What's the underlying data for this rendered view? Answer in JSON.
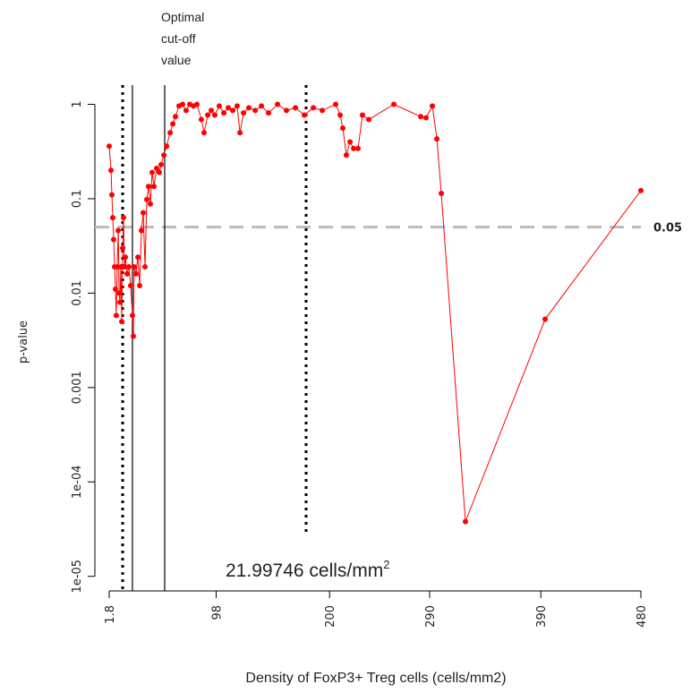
{
  "chart_data": {
    "type": "line",
    "y_label": "p-value",
    "x_label": "Density of FoxP3+ Treg cells (cells/mm2)",
    "log_y": true,
    "color": "#ff0000",
    "xlim": [
      1.8,
      480
    ],
    "ylim": [
      7e-06,
      1.6
    ],
    "xticks": [
      1.8,
      98,
      200,
      290,
      390,
      480
    ],
    "yticks": [
      1,
      0.1,
      0.01,
      0.001,
      {
        "value": 0.0001,
        "label": "1e-04"
      },
      {
        "value": 1e-05,
        "label": "1e-05"
      }
    ],
    "x": [
      1.8,
      3.4,
      4.2,
      5.0,
      5.8,
      6.6,
      7.4,
      8.2,
      9.0,
      9.9,
      10.7,
      11.5,
      12.3,
      13.1,
      13.9,
      14.7,
      15.5,
      16.3,
      17.9,
      19.5,
      21.1,
      22.7,
      23.5,
      24.3,
      25.9,
      27.6,
      29.2,
      30.8,
      32.4,
      34.0,
      35.6,
      37.2,
      38.8,
      40.4,
      42.1,
      44.5,
      46.9,
      48.5,
      51.0,
      53.4,
      56.6,
      59.0,
      61.4,
      64.6,
      67.8,
      71.0,
      74.2,
      77.5,
      80.7,
      84.7,
      87.1,
      90.4,
      93.6,
      96.8,
      100.8,
      104.9,
      108.9,
      112.9,
      116.9,
      119.4,
      122.6,
      127.4,
      133.1,
      138.7,
      145.1,
      153.2,
      161.2,
      169.3,
      177.3,
      185.4,
      193.4,
      205.5,
      209.5,
      211.9,
      215.1,
      218.4,
      221.6,
      225.6,
      229.6,
      235.3,
      257.8,
      282.0,
      286.8,
      292.5,
      296.5,
      300.5,
      322.2,
      393.9,
      480
    ],
    "values": [
      0.36,
      0.2,
      0.11,
      0.063,
      0.037,
      0.019,
      0.011,
      0.0058,
      0.019,
      0.046,
      0.01,
      0.008,
      0.019,
      0.005,
      0.03,
      0.063,
      0.019,
      0.024,
      0.016,
      0.019,
      0.012,
      0.0058,
      0.0035,
      0.019,
      0.016,
      0.024,
      0.012,
      0.046,
      0.071,
      0.019,
      0.098,
      0.135,
      0.088,
      0.19,
      0.135,
      0.21,
      0.19,
      0.23,
      0.29,
      0.36,
      0.5,
      0.62,
      0.74,
      0.96,
      1,
      0.86,
      1,
      0.96,
      1,
      0.69,
      0.5,
      0.77,
      0.86,
      0.77,
      0.96,
      0.81,
      0.92,
      0.86,
      0.96,
      0.5,
      0.81,
      0.92,
      0.86,
      0.96,
      0.81,
      1,
      0.86,
      0.92,
      0.77,
      0.92,
      0.86,
      1,
      0.77,
      0.56,
      0.29,
      0.4,
      0.34,
      0.34,
      0.77,
      0.69,
      1,
      0.74,
      0.72,
      0.96,
      0.43,
      0.114,
      3.8e-05,
      0.0053,
      0.122
    ],
    "hline": {
      "value": 0.05,
      "label": "0.05",
      "color": "#bbbbbb"
    },
    "vlines": [
      {
        "x": 13.9,
        "style": "dotted"
      },
      {
        "x": 22.7,
        "style": "solid"
      },
      {
        "x": 51.7,
        "style": "solid"
      },
      {
        "x": 178.9,
        "style": "dotted",
        "y_end": 2.8e-05
      }
    ],
    "annotations": {
      "cutoff_label": [
        "Optimal",
        "cut-off",
        "value"
      ],
      "cutoff_value": {
        "text": "21.99746 cells/mm",
        "sup": "2"
      }
    }
  }
}
